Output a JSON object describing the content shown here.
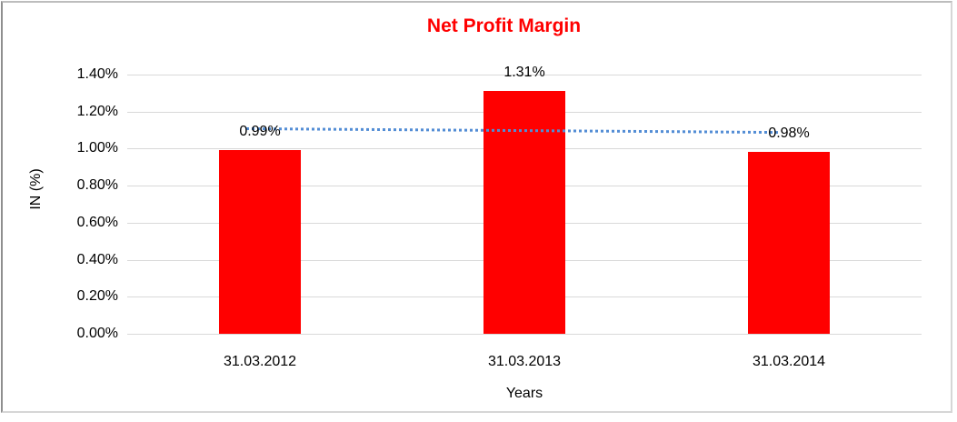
{
  "chart_data": {
    "type": "bar",
    "title": "Net Profit Margin",
    "title_color": "#FF0000",
    "categories": [
      "31.03.2012",
      "31.03.2013",
      "31.03.2014"
    ],
    "values": [
      0.99,
      1.31,
      0.98
    ],
    "data_labels": [
      "0.99%",
      "1.31%",
      "0.98%"
    ],
    "xlabel": "Years",
    "ylabel": "IN (%)",
    "ylim": [
      0,
      1.4
    ],
    "ytick_step": 0.2,
    "yticks": [
      "0.00%",
      "0.20%",
      "0.40%",
      "0.60%",
      "0.80%",
      "1.00%",
      "1.20%",
      "1.40%"
    ],
    "bar_color": "#FF0000",
    "gridline_color": "#D9D9D9",
    "background_color": "#FFFFFF",
    "grid": true,
    "legend": "none",
    "trendline": {
      "type": "linear",
      "style": "dotted",
      "color": "#538DD5",
      "start_value": 1.11,
      "end_value": 1.09
    }
  }
}
